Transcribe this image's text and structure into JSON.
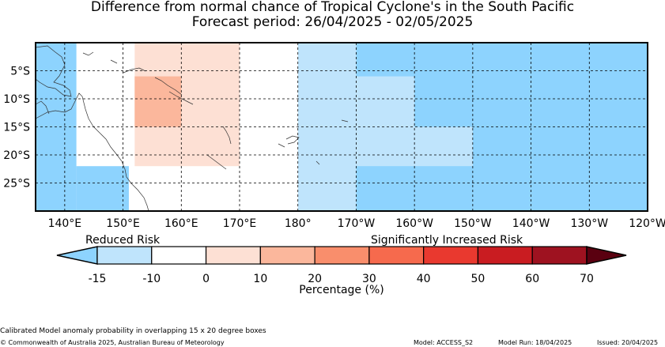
{
  "title": "Difference from normal chance of Tropical Cyclone's in the South Pacific",
  "subtitle": "Forecast period: 26/04/2025 - 02/05/2025",
  "lon_ticks": [
    "140°E",
    "150°E",
    "160°E",
    "170°E",
    "180°",
    "170°W",
    "160°W",
    "150°W",
    "140°W",
    "130°W",
    "120°W"
  ],
  "lat_ticks": [
    "5°S",
    "10°S",
    "15°S",
    "20°S",
    "25°S"
  ],
  "legend": {
    "left_label": "Reduced Risk",
    "right_label": "Significantly Increased Risk",
    "ticks": [
      "-15",
      "-10",
      "0",
      "10",
      "20",
      "30",
      "40",
      "50",
      "60",
      "70"
    ],
    "colors": [
      "#8dd3fe",
      "#bfe4fc",
      "#ffffff",
      "#fde0d4",
      "#fbb79c",
      "#f98e6c",
      "#f66a4d",
      "#e9392f",
      "#c91c21",
      "#9e1220",
      "#5a0010"
    ],
    "xlabel": "Percentage (%)"
  },
  "footer": {
    "note": "Calibrated Model anomaly probability in overlapping 15 x 20 degree boxes",
    "copyright": "© Commonwealth of Australia 2025, Australian Bureau of Meteorology",
    "model": "Model: ACCESS_S2",
    "model_run": "Model Run: 18/04/2025",
    "issued": "Issued: 20/04/2025"
  },
  "map_data": {
    "lon_range_east": [
      135,
      240
    ],
    "lat_range": [
      0,
      -30
    ],
    "cells": [
      {
        "lon": [
          135,
          142
        ],
        "lat": [
          0,
          -30
        ],
        "value": -15
      },
      {
        "lon": [
          142,
          151
        ],
        "lat": [
          -22,
          -30
        ],
        "value": -15
      },
      {
        "lon": [
          152,
          170
        ],
        "lat": [
          0,
          -22
        ],
        "value": 10
      },
      {
        "lon": [
          152,
          160
        ],
        "lat": [
          -6,
          -15
        ],
        "value": 20
      },
      {
        "lon": [
          180,
          190
        ],
        "lat": [
          0,
          -30
        ],
        "value": -10
      },
      {
        "lon": [
          190,
          240
        ],
        "lat": [
          0,
          -30
        ],
        "value": -15
      },
      {
        "lon": [
          190,
          200
        ],
        "lat": [
          -6,
          -22
        ],
        "value": -10
      },
      {
        "lon": [
          200,
          210
        ],
        "lat": [
          -15,
          -22
        ],
        "value": -10
      }
    ]
  }
}
